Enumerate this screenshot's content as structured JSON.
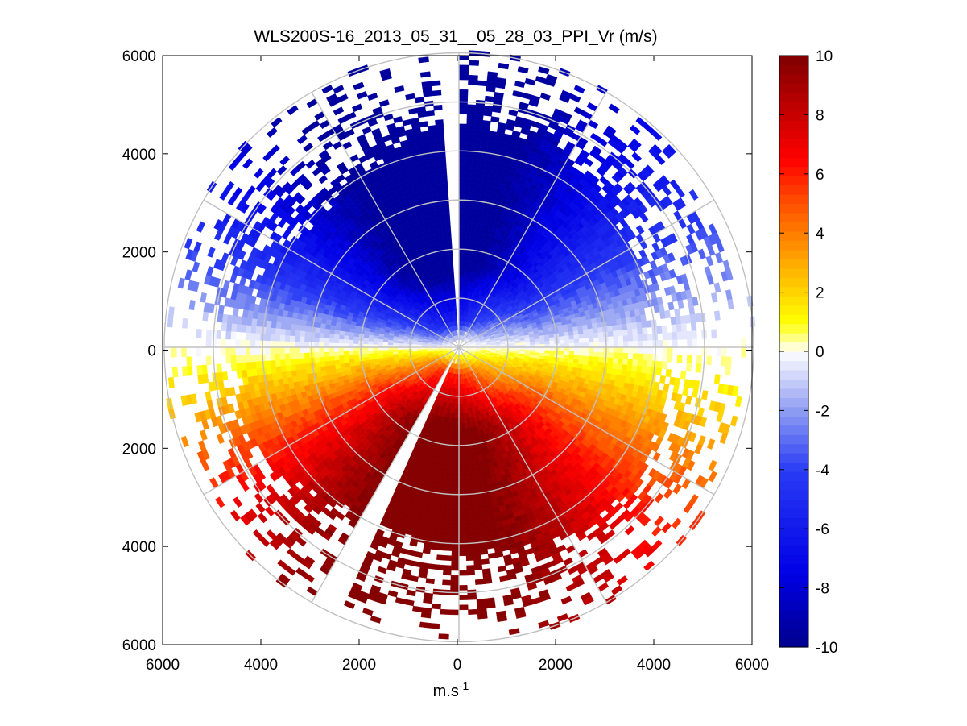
{
  "chart_data": {
    "type": "heatmap",
    "subtype": "polar-ppi-scan",
    "title": "WLS200S-16_2013_05_31__05_28_03_PPI_Vr (m/s)",
    "xlabel_base": "m.s",
    "xlabel_sup": "-1",
    "ylabel": "",
    "xlim": [
      -6000,
      6000
    ],
    "ylim": [
      -6000,
      6000
    ],
    "x_ticks": [
      "6000",
      "4000",
      "2000",
      "0",
      "2000",
      "4000",
      "6000"
    ],
    "y_ticks": [
      "6000",
      "4000",
      "2000",
      "0",
      "2000",
      "4000",
      "6000"
    ],
    "tick_values": [
      -6000,
      -4000,
      -2000,
      0,
      2000,
      4000,
      6000
    ],
    "range_rings_m": [
      1000,
      2000,
      3000,
      4000,
      5000,
      6000
    ],
    "spoke_angles_deg": [
      0,
      30,
      60,
      90,
      120,
      150,
      180,
      210,
      240,
      270,
      300,
      330
    ],
    "max_range_m": 6000,
    "range_gate_m": 100,
    "azimuth_step_deg": 2,
    "blocked_sectors_deg": [
      [
        357,
        359
      ],
      [
        204,
        210
      ]
    ],
    "colorbar": {
      "min": -10,
      "max": 10,
      "levels": 64,
      "ticks": [
        "10",
        "8",
        "6",
        "4",
        "2",
        "0",
        "-2",
        "-4",
        "-6",
        "-8",
        "-10"
      ],
      "tick_values": [
        10,
        8,
        6,
        4,
        2,
        0,
        -2,
        -4,
        -6,
        -8,
        -10
      ],
      "colormap": "blue-white-red",
      "anchor_colors": [
        "#00008c",
        "#0000e6",
        "#4a5cf2",
        "#ffffff",
        "#ffff00",
        "#ff9900",
        "#ff0000",
        "#cc0000",
        "#7f0000"
      ]
    },
    "radial_velocity_field": {
      "description": "approaching flow (negative) from the north half, receding flow (positive) in the south half; zero-velocity line near east-west",
      "peak_negative_mps": -9,
      "peak_positive_mps": 9.5,
      "data_coverage_range_m": 4200
    }
  },
  "colors": {
    "background": "#ffffff",
    "axis": "#000000",
    "grid": "#c0c0c0",
    "missing": "#ffffff"
  }
}
